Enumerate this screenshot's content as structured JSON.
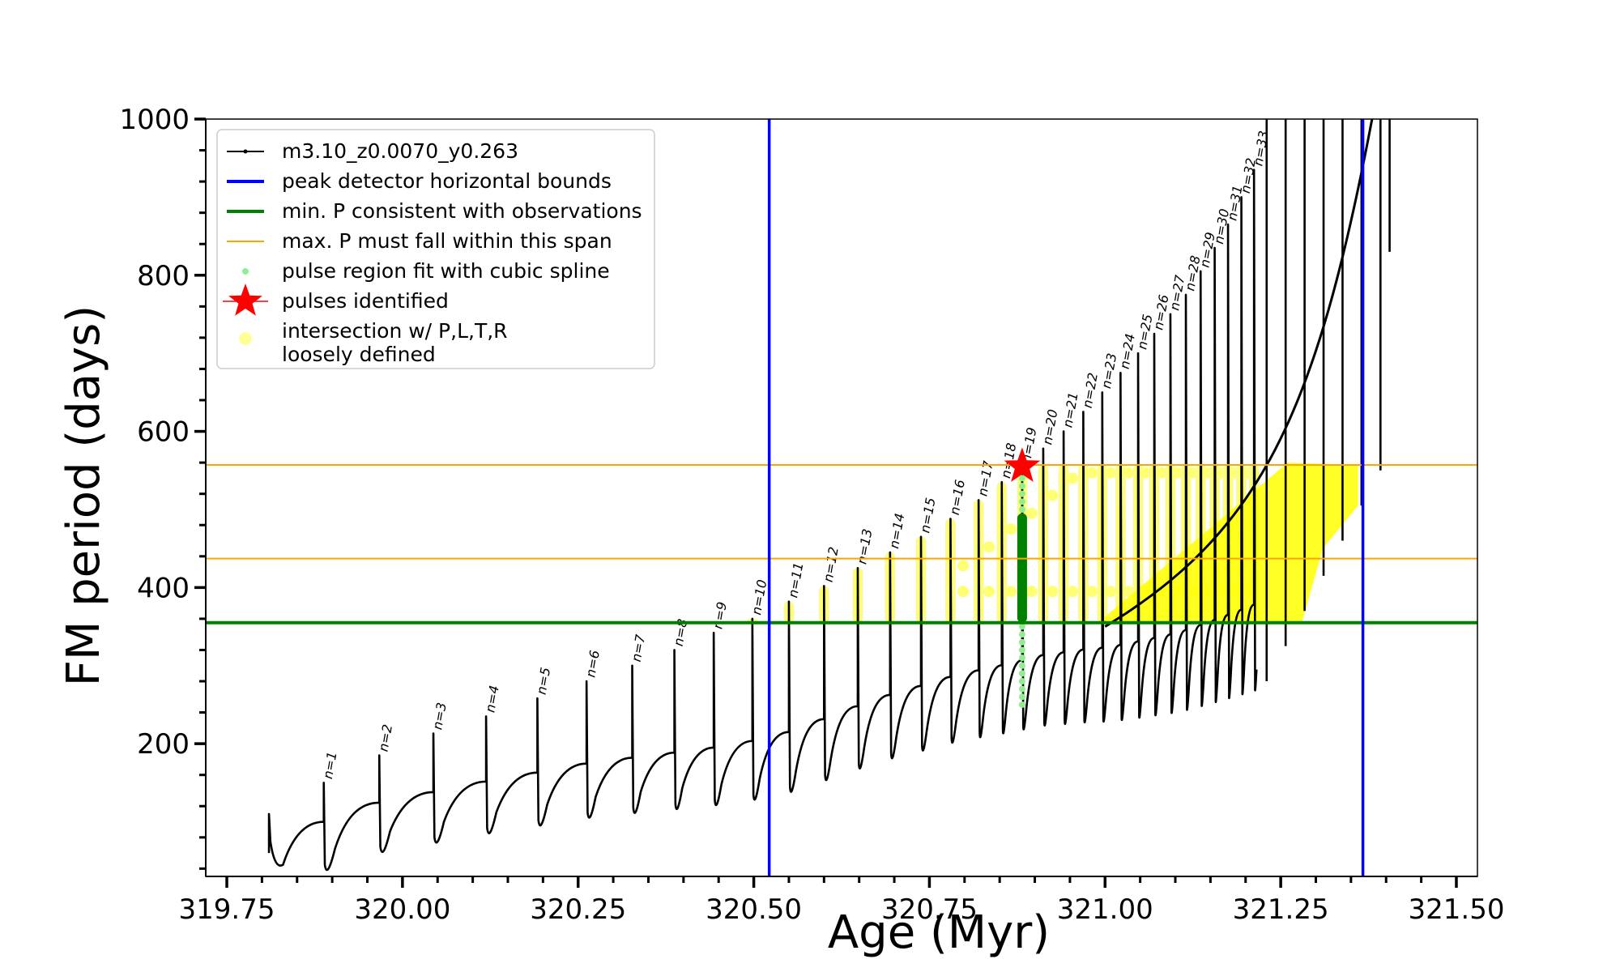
{
  "chart_data": {
    "type": "line",
    "xlabel": "Age (Myr)",
    "ylabel": "FM period (days)",
    "xlim": [
      319.72,
      321.53
    ],
    "ylim": [
      30,
      1000
    ],
    "x_ticks": [
      "319.75",
      "320.00",
      "320.25",
      "320.50",
      "320.75",
      "321.00",
      "321.25",
      "321.50"
    ],
    "x_tick_values": [
      319.75,
      320.0,
      320.25,
      320.5,
      320.75,
      321.0,
      321.25,
      321.5
    ],
    "y_ticks": [
      "200",
      "400",
      "600",
      "800",
      "1000"
    ],
    "y_tick_values": [
      200,
      400,
      600,
      800,
      1000
    ],
    "grid": false,
    "legend_position": "top-left",
    "legend": [
      {
        "label": "m3.10_z0.0070_y0.263",
        "color": "#000000",
        "marker": "line-dot"
      },
      {
        "label": "peak detector horizontal bounds",
        "color": "#0000ff",
        "marker": "line"
      },
      {
        "label": "min. P consistent with observations",
        "color": "#008000",
        "marker": "line"
      },
      {
        "label": "max. P must fall within this span",
        "color": "#ffa500",
        "marker": "thin-line"
      },
      {
        "label": "pulse region fit with cubic spline",
        "color": "#90ee90",
        "marker": "dot"
      },
      {
        "label": "pulses identified",
        "color": "#ff0000",
        "marker": "star"
      },
      {
        "label": "intersection w/ P,L,T,R",
        "label2": "loosely defined",
        "color": "#ffff99",
        "marker": "circle"
      }
    ],
    "vertical_lines": [
      {
        "series": "peak detector horizontal bounds",
        "x": 320.522,
        "color": "#0000ff"
      },
      {
        "series": "peak detector horizontal bounds",
        "x": 321.367,
        "color": "#0000ff"
      }
    ],
    "horizontal_lines": [
      {
        "series": "min. P consistent with observations",
        "y": 355,
        "color": "#008000"
      },
      {
        "series": "max. P must fall within this span",
        "y": 437,
        "color": "#ffa500"
      },
      {
        "series": "max. P must fall within this span",
        "y": 557,
        "color": "#ffa500"
      }
    ],
    "pulses": [
      {
        "label": "n=1",
        "x": 319.888,
        "peak": 150,
        "trough": 45
      },
      {
        "label": "n=2",
        "x": 319.967,
        "peak": 185,
        "trough": 68
      },
      {
        "label": "n=3",
        "x": 320.044,
        "peak": 213,
        "trough": 80
      },
      {
        "label": "n=4",
        "x": 320.119,
        "peak": 235,
        "trough": 92
      },
      {
        "label": "n=5",
        "x": 320.192,
        "peak": 258,
        "trough": 102
      },
      {
        "label": "n=6",
        "x": 320.262,
        "peak": 280,
        "trough": 112
      },
      {
        "label": "n=7",
        "x": 320.327,
        "peak": 300,
        "trough": 118
      },
      {
        "label": "n=8",
        "x": 320.387,
        "peak": 320,
        "trough": 123
      },
      {
        "label": "n=9",
        "x": 320.443,
        "peak": 342,
        "trough": 128
      },
      {
        "label": "n=10",
        "x": 320.498,
        "peak": 360,
        "trough": 135
      },
      {
        "label": "n=11",
        "x": 320.55,
        "peak": 382,
        "trough": 145
      },
      {
        "label": "n=12",
        "x": 320.6,
        "peak": 402,
        "trough": 160
      },
      {
        "label": "n=13",
        "x": 320.648,
        "peak": 425,
        "trough": 175
      },
      {
        "label": "n=14",
        "x": 320.694,
        "peak": 445,
        "trough": 188
      },
      {
        "label": "n=15",
        "x": 320.738,
        "peak": 465,
        "trough": 198
      },
      {
        "label": "n=16",
        "x": 320.78,
        "peak": 488,
        "trough": 208
      },
      {
        "label": "n=17",
        "x": 320.82,
        "peak": 512,
        "trough": 215
      },
      {
        "label": "n=18",
        "x": 320.853,
        "peak": 535,
        "trough": 220
      },
      {
        "label": "n=19",
        "x": 320.882,
        "peak": 555,
        "trough": 225
      },
      {
        "label": "n=20",
        "x": 320.912,
        "peak": 578,
        "trough": 230
      },
      {
        "label": "n=21",
        "x": 320.941,
        "peak": 600,
        "trough": 232
      },
      {
        "label": "n=22",
        "x": 320.969,
        "peak": 625,
        "trough": 234
      },
      {
        "label": "n=23",
        "x": 320.996,
        "peak": 650,
        "trough": 235
      },
      {
        "label": "n=24",
        "x": 321.022,
        "peak": 675,
        "trough": 237
      },
      {
        "label": "n=25",
        "x": 321.047,
        "peak": 700,
        "trough": 240
      },
      {
        "label": "n=26",
        "x": 321.07,
        "peak": 725,
        "trough": 243
      },
      {
        "label": "n=27",
        "x": 321.093,
        "peak": 750,
        "trough": 246
      },
      {
        "label": "n=28",
        "x": 321.115,
        "peak": 775,
        "trough": 250
      },
      {
        "label": "n=29",
        "x": 321.136,
        "peak": 805,
        "trough": 255
      },
      {
        "label": "n=30",
        "x": 321.156,
        "peak": 835,
        "trough": 260
      },
      {
        "label": "n=31",
        "x": 321.175,
        "peak": 865,
        "trough": 265
      },
      {
        "label": "n=32",
        "x": 321.194,
        "peak": 900,
        "trough": 270
      },
      {
        "label": "n=33",
        "x": 321.212,
        "peak": 935,
        "trough": 275
      }
    ],
    "first_pulse_start": {
      "x": 319.81,
      "y": 60
    },
    "identified_pulse": {
      "x": 320.882,
      "y": 555,
      "color": "#ff0000"
    },
    "spline_fit": {
      "x": 320.882,
      "y_range": [
        250,
        555
      ],
      "fit_range": [
        355,
        495
      ],
      "color": "#90ee90",
      "fit_color": "#008000"
    },
    "intersection_region": {
      "y_range": [
        355,
        557
      ],
      "color": "#ffff00"
    },
    "envelope_end": {
      "x": 321.41,
      "y": 1000
    }
  }
}
